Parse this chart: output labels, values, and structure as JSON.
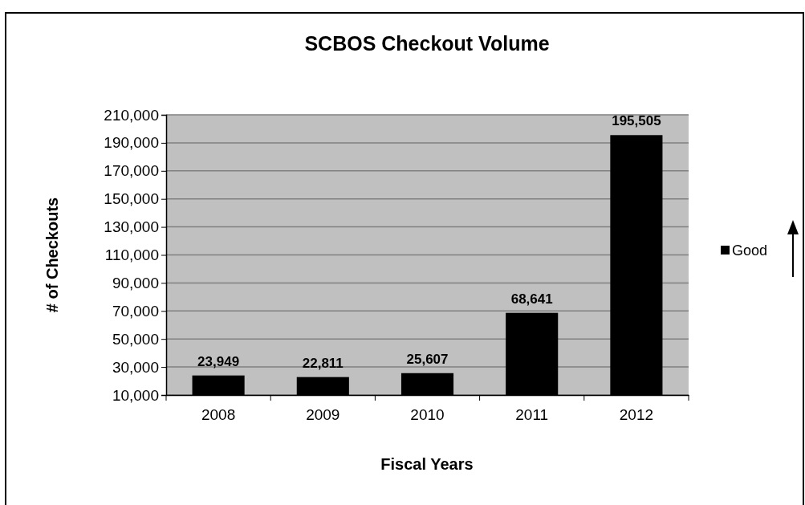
{
  "chart_data": {
    "type": "bar",
    "title": "SCBOS Checkout Volume",
    "xlabel": "Fiscal Years",
    "ylabel": "# of Checkouts",
    "categories": [
      "2008",
      "2009",
      "2010",
      "2011",
      "2012"
    ],
    "series": [
      {
        "name": "Good",
        "color": "#000000",
        "values": [
          23949,
          22811,
          25607,
          68641,
          195505
        ],
        "value_labels": [
          "23,949",
          "22,811",
          "25,607",
          "68,641",
          "195,505"
        ]
      }
    ],
    "ylim": [
      10000,
      210000
    ],
    "yticks": [
      {
        "value": 10000,
        "label": "10,000"
      },
      {
        "value": 30000,
        "label": "30,000"
      },
      {
        "value": 50000,
        "label": "50,000"
      },
      {
        "value": 70000,
        "label": "70,000"
      },
      {
        "value": 90000,
        "label": "90,000"
      },
      {
        "value": 110000,
        "label": "110,000"
      },
      {
        "value": 130000,
        "label": "130,000"
      },
      {
        "value": 150000,
        "label": "150,000"
      },
      {
        "value": 170000,
        "label": "170,000"
      },
      {
        "value": 190000,
        "label": "190,000"
      },
      {
        "value": 210000,
        "label": "210,000"
      }
    ],
    "grid": "y",
    "legend": "right"
  }
}
